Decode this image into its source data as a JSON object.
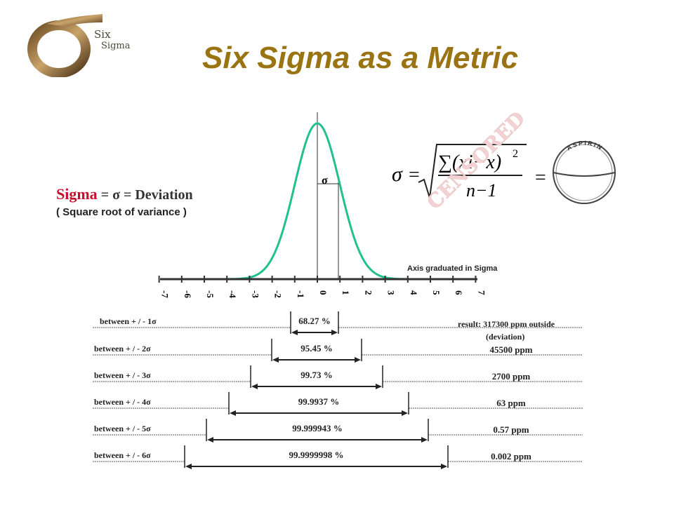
{
  "logo": {
    "line1": "Six",
    "line2": "Sigma"
  },
  "title": "Six Sigma as a Metric",
  "definition": {
    "sigma_word": "Sigma",
    "rest": " =  σ  = Deviation",
    "subtitle": "( Square root of variance )"
  },
  "curve_label": "σ",
  "formula": {
    "lhs": "σ",
    "eq": "=",
    "numerator": "∑(xi−x)",
    "exponent": "2",
    "denominator": "n−1",
    "equals_pill": "="
  },
  "stamp": "CENSORED",
  "aspirin": "ASPIRIN",
  "axis_note": "Axis graduated in Sigma",
  "axis_ticks": [
    "-7",
    "-6",
    "-5",
    "-4",
    "-3",
    "-2",
    "-1",
    "0",
    "1",
    "2",
    "3",
    "4",
    "5",
    "6",
    "7"
  ],
  "result_header": "result:  317300  ppm outside",
  "result_header2": "(deviation)",
  "rows": [
    {
      "label": "between  + / - 1σ",
      "percent": "68.27 %",
      "ppm": ""
    },
    {
      "label": "between  + / - 2σ",
      "percent": "95.45 %",
      "ppm": "45500  ppm"
    },
    {
      "label": "between  + / - 3σ",
      "percent": "99.73 %",
      "ppm": "2700  ppm"
    },
    {
      "label": "between  + / - 4σ",
      "percent": "99.9937 %",
      "ppm": "63  ppm"
    },
    {
      "label": "between  + / - 5σ",
      "percent": "99.999943 %",
      "ppm": "0.57  ppm"
    },
    {
      "label": "between  + / - 6σ",
      "percent": "99.9999998 %",
      "ppm": "0.002  ppm"
    }
  ]
}
